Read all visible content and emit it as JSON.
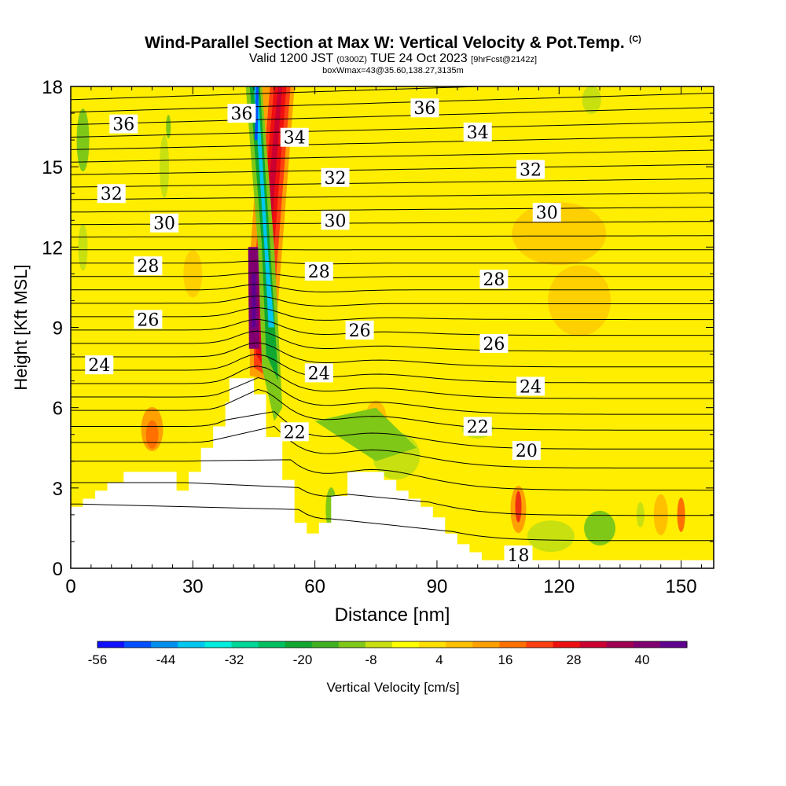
{
  "header": {
    "title": "Wind-Parallel Section at Max W: Vertical Velocity & Pot.Temp.",
    "copyright": "(C)",
    "valid_main": "Valid 1200 JST",
    "valid_utc": "(0300Z)",
    "valid_date": "TUE 24 Oct 2023",
    "forecast": "[9hrFcst@2142z]",
    "boxwmax": "boxWmax=43@35.60,138.27,3135m"
  },
  "chart_data": {
    "type": "heatmap",
    "xlabel": "Distance [nm]",
    "ylabel": "Height [Kft MSL]",
    "xlim": [
      0,
      158
    ],
    "ylim": [
      0,
      18
    ],
    "x_ticks": [
      0,
      30,
      60,
      90,
      120,
      150
    ],
    "y_ticks": [
      0,
      3,
      6,
      9,
      12,
      15,
      18
    ],
    "colorbar": {
      "label": "Vertical Velocity [cm/s]",
      "tick_labels": [
        "-56",
        "-44",
        "-32",
        "-20",
        "-8",
        "4",
        "16",
        "28",
        "40"
      ],
      "colors": [
        "#1010ff",
        "#0050ff",
        "#0090f0",
        "#00c8f0",
        "#00eedd",
        "#00d898",
        "#00c060",
        "#10a830",
        "#40b020",
        "#80c818",
        "#c8e010",
        "#ffff00",
        "#ffe000",
        "#ffc000",
        "#ffa000",
        "#ff7000",
        "#ff4010",
        "#ee1010",
        "#cc0030",
        "#a00050",
        "#800070",
        "#600090"
      ]
    },
    "isentropes": [
      {
        "label": "18",
        "pos": [
          [
            110,
            0.5
          ]
        ]
      },
      {
        "label": "20",
        "pos": [
          [
            112,
            4.4
          ]
        ]
      },
      {
        "label": "22",
        "pos": [
          [
            55,
            5.1
          ],
          [
            100,
            5.3
          ]
        ]
      },
      {
        "label": "24",
        "pos": [
          [
            7,
            7.6
          ],
          [
            61,
            7.3
          ],
          [
            113,
            6.8
          ]
        ]
      },
      {
        "label": "26",
        "pos": [
          [
            19,
            9.3
          ],
          [
            71,
            8.9
          ],
          [
            104,
            8.4
          ]
        ]
      },
      {
        "label": "28",
        "pos": [
          [
            19,
            11.3
          ],
          [
            61,
            11.1
          ],
          [
            104,
            10.8
          ]
        ]
      },
      {
        "label": "30",
        "pos": [
          [
            23,
            12.9
          ],
          [
            65,
            13.0
          ],
          [
            117,
            13.3
          ]
        ]
      },
      {
        "label": "32",
        "pos": [
          [
            10,
            14.0
          ],
          [
            65,
            14.6
          ],
          [
            113,
            14.9
          ]
        ]
      },
      {
        "label": "34",
        "pos": [
          [
            55,
            16.1
          ],
          [
            100,
            16.3
          ]
        ]
      },
      {
        "label": "36",
        "pos": [
          [
            13,
            16.6
          ],
          [
            42,
            17.0
          ],
          [
            87,
            17.2
          ]
        ]
      }
    ]
  }
}
